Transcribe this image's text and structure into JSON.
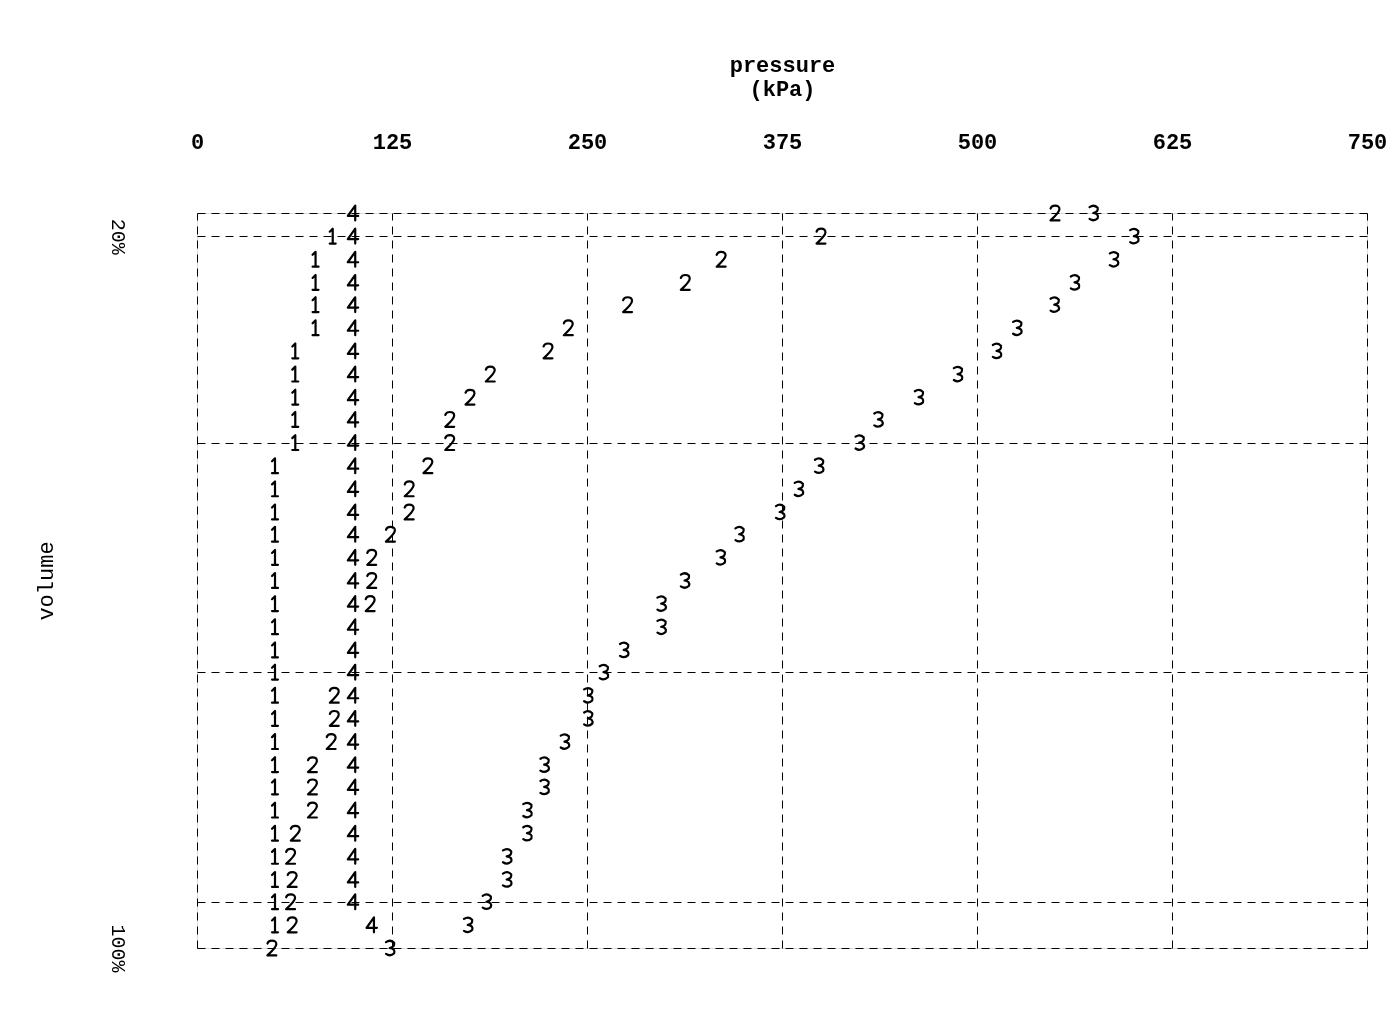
{
  "chart_data": {
    "type": "scatter",
    "xlabel": "pressure\n(kPa)",
    "ylabel": "volume",
    "xlim": [
      0,
      750
    ],
    "xticks": [
      0,
      125,
      250,
      375,
      500,
      625,
      750
    ],
    "ylim": [
      100,
      17.4
    ],
    "yticks": [
      {
        "value": 17.4,
        "label": null
      },
      {
        "value": 20,
        "label": "20%"
      },
      {
        "value": 43.2,
        "label": null
      },
      {
        "value": 69.0,
        "label": null
      },
      {
        "value": 94.8,
        "label": null
      },
      {
        "value": 100,
        "label": "100%"
      }
    ],
    "grid": true,
    "line_style": "dashed",
    "series": [
      {
        "color": "#000000",
        "x": [
          87,
          76,
          76,
          76,
          76,
          63,
          63,
          63,
          63,
          63,
          50,
          50,
          50,
          50,
          50,
          50,
          50,
          50,
          50,
          50,
          50,
          50,
          50,
          50,
          50,
          50,
          50,
          50,
          50,
          50,
          50
        ],
        "values": [
          20,
          22.6,
          25.2,
          27.7,
          30.3,
          32.9,
          35.5,
          38.1,
          40.6,
          43.2,
          45.8,
          48.4,
          51.0,
          53.5,
          56.1,
          58.7,
          61.3,
          63.9,
          66.5,
          69.0,
          71.6,
          74.2,
          76.8,
          79.4,
          81.9,
          84.5,
          87.1,
          89.7,
          92.3,
          94.8,
          97.4
        ]
      },
      {
        "color": "#000000",
        "x": [
          550,
          400,
          336,
          313,
          276,
          238,
          225,
          188,
          175,
          162,
          162,
          148,
          136,
          136,
          124,
          112,
          112,
          111,
          88,
          88,
          86,
          74,
          74,
          74,
          63,
          60,
          61,
          60,
          61,
          48
        ],
        "values": [
          17.4,
          20,
          22.6,
          25.2,
          27.7,
          30.3,
          32.9,
          35.5,
          38.1,
          40.6,
          43.2,
          45.8,
          48.4,
          51.0,
          53.5,
          56.1,
          58.7,
          61.3,
          71.6,
          74.2,
          76.8,
          79.4,
          81.9,
          84.5,
          87.1,
          89.7,
          92.3,
          94.8,
          97.4,
          100
        ]
      },
      {
        "color": "#000000",
        "x": [
          575,
          601,
          588,
          563,
          550,
          526,
          513,
          488,
          463,
          437,
          425,
          399,
          386,
          374,
          348,
          336,
          313,
          298,
          298,
          274,
          261,
          251,
          251,
          236,
          223,
          223,
          212,
          212,
          199,
          199,
          186,
          174,
          124
        ],
        "values": [
          17.4,
          20,
          22.6,
          25.2,
          27.7,
          30.3,
          32.9,
          35.5,
          38.1,
          40.6,
          43.2,
          45.8,
          48.4,
          51.0,
          53.5,
          56.1,
          58.7,
          61.3,
          63.9,
          66.5,
          69.0,
          71.6,
          74.2,
          76.8,
          79.4,
          81.9,
          84.5,
          87.1,
          89.7,
          92.3,
          94.8,
          97.4,
          100
        ]
      },
      {
        "color": "#000000",
        "x": [
          100,
          100,
          100,
          100,
          100,
          100,
          100,
          100,
          100,
          100,
          100,
          100,
          100,
          100,
          100,
          100,
          100,
          100,
          100,
          100,
          100,
          100,
          100,
          100,
          100,
          100,
          100,
          100,
          100,
          100,
          100,
          112
        ],
        "values": [
          17.4,
          20,
          22.6,
          25.2,
          27.7,
          30.3,
          32.9,
          35.5,
          38.1,
          40.6,
          43.2,
          45.8,
          48.4,
          51.0,
          53.5,
          56.1,
          58.7,
          61.3,
          63.9,
          66.5,
          69.0,
          71.6,
          74.2,
          76.8,
          79.4,
          81.9,
          84.5,
          87.1,
          89.7,
          92.3,
          94.8,
          97.4
        ]
      }
    ]
  }
}
